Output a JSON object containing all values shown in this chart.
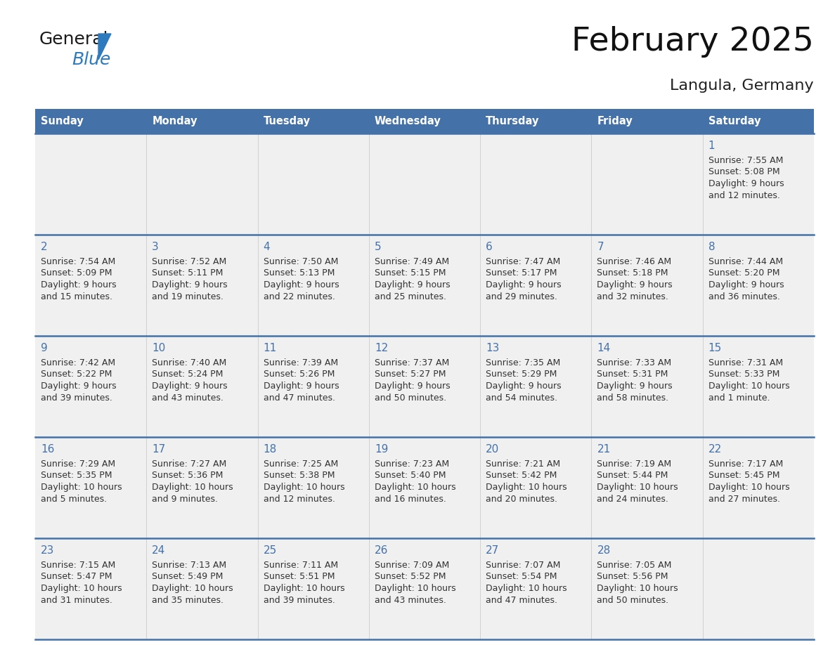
{
  "title": "February 2025",
  "subtitle": "Langula, Germany",
  "days_of_week": [
    "Sunday",
    "Monday",
    "Tuesday",
    "Wednesday",
    "Thursday",
    "Friday",
    "Saturday"
  ],
  "header_bg": "#4472a8",
  "header_text_color": "#ffffff",
  "cell_bg": "#f0f0f0",
  "day_number_color": "#4472a8",
  "text_color": "#333333",
  "line_color": "#4472a8",
  "calendar": [
    [
      null,
      null,
      null,
      null,
      null,
      null,
      {
        "day": "1",
        "sunrise": "7:55 AM",
        "sunset": "5:08 PM",
        "daylight_l1": "Daylight: 9 hours",
        "daylight_l2": "and 12 minutes."
      }
    ],
    [
      {
        "day": "2",
        "sunrise": "7:54 AM",
        "sunset": "5:09 PM",
        "daylight_l1": "Daylight: 9 hours",
        "daylight_l2": "and 15 minutes."
      },
      {
        "day": "3",
        "sunrise": "7:52 AM",
        "sunset": "5:11 PM",
        "daylight_l1": "Daylight: 9 hours",
        "daylight_l2": "and 19 minutes."
      },
      {
        "day": "4",
        "sunrise": "7:50 AM",
        "sunset": "5:13 PM",
        "daylight_l1": "Daylight: 9 hours",
        "daylight_l2": "and 22 minutes."
      },
      {
        "day": "5",
        "sunrise": "7:49 AM",
        "sunset": "5:15 PM",
        "daylight_l1": "Daylight: 9 hours",
        "daylight_l2": "and 25 minutes."
      },
      {
        "day": "6",
        "sunrise": "7:47 AM",
        "sunset": "5:17 PM",
        "daylight_l1": "Daylight: 9 hours",
        "daylight_l2": "and 29 minutes."
      },
      {
        "day": "7",
        "sunrise": "7:46 AM",
        "sunset": "5:18 PM",
        "daylight_l1": "Daylight: 9 hours",
        "daylight_l2": "and 32 minutes."
      },
      {
        "day": "8",
        "sunrise": "7:44 AM",
        "sunset": "5:20 PM",
        "daylight_l1": "Daylight: 9 hours",
        "daylight_l2": "and 36 minutes."
      }
    ],
    [
      {
        "day": "9",
        "sunrise": "7:42 AM",
        "sunset": "5:22 PM",
        "daylight_l1": "Daylight: 9 hours",
        "daylight_l2": "and 39 minutes."
      },
      {
        "day": "10",
        "sunrise": "7:40 AM",
        "sunset": "5:24 PM",
        "daylight_l1": "Daylight: 9 hours",
        "daylight_l2": "and 43 minutes."
      },
      {
        "day": "11",
        "sunrise": "7:39 AM",
        "sunset": "5:26 PM",
        "daylight_l1": "Daylight: 9 hours",
        "daylight_l2": "and 47 minutes."
      },
      {
        "day": "12",
        "sunrise": "7:37 AM",
        "sunset": "5:27 PM",
        "daylight_l1": "Daylight: 9 hours",
        "daylight_l2": "and 50 minutes."
      },
      {
        "day": "13",
        "sunrise": "7:35 AM",
        "sunset": "5:29 PM",
        "daylight_l1": "Daylight: 9 hours",
        "daylight_l2": "and 54 minutes."
      },
      {
        "day": "14",
        "sunrise": "7:33 AM",
        "sunset": "5:31 PM",
        "daylight_l1": "Daylight: 9 hours",
        "daylight_l2": "and 58 minutes."
      },
      {
        "day": "15",
        "sunrise": "7:31 AM",
        "sunset": "5:33 PM",
        "daylight_l1": "Daylight: 10 hours",
        "daylight_l2": "and 1 minute."
      }
    ],
    [
      {
        "day": "16",
        "sunrise": "7:29 AM",
        "sunset": "5:35 PM",
        "daylight_l1": "Daylight: 10 hours",
        "daylight_l2": "and 5 minutes."
      },
      {
        "day": "17",
        "sunrise": "7:27 AM",
        "sunset": "5:36 PM",
        "daylight_l1": "Daylight: 10 hours",
        "daylight_l2": "and 9 minutes."
      },
      {
        "day": "18",
        "sunrise": "7:25 AM",
        "sunset": "5:38 PM",
        "daylight_l1": "Daylight: 10 hours",
        "daylight_l2": "and 12 minutes."
      },
      {
        "day": "19",
        "sunrise": "7:23 AM",
        "sunset": "5:40 PM",
        "daylight_l1": "Daylight: 10 hours",
        "daylight_l2": "and 16 minutes."
      },
      {
        "day": "20",
        "sunrise": "7:21 AM",
        "sunset": "5:42 PM",
        "daylight_l1": "Daylight: 10 hours",
        "daylight_l2": "and 20 minutes."
      },
      {
        "day": "21",
        "sunrise": "7:19 AM",
        "sunset": "5:44 PM",
        "daylight_l1": "Daylight: 10 hours",
        "daylight_l2": "and 24 minutes."
      },
      {
        "day": "22",
        "sunrise": "7:17 AM",
        "sunset": "5:45 PM",
        "daylight_l1": "Daylight: 10 hours",
        "daylight_l2": "and 27 minutes."
      }
    ],
    [
      {
        "day": "23",
        "sunrise": "7:15 AM",
        "sunset": "5:47 PM",
        "daylight_l1": "Daylight: 10 hours",
        "daylight_l2": "and 31 minutes."
      },
      {
        "day": "24",
        "sunrise": "7:13 AM",
        "sunset": "5:49 PM",
        "daylight_l1": "Daylight: 10 hours",
        "daylight_l2": "and 35 minutes."
      },
      {
        "day": "25",
        "sunrise": "7:11 AM",
        "sunset": "5:51 PM",
        "daylight_l1": "Daylight: 10 hours",
        "daylight_l2": "and 39 minutes."
      },
      {
        "day": "26",
        "sunrise": "7:09 AM",
        "sunset": "5:52 PM",
        "daylight_l1": "Daylight: 10 hours",
        "daylight_l2": "and 43 minutes."
      },
      {
        "day": "27",
        "sunrise": "7:07 AM",
        "sunset": "5:54 PM",
        "daylight_l1": "Daylight: 10 hours",
        "daylight_l2": "and 47 minutes."
      },
      {
        "day": "28",
        "sunrise": "7:05 AM",
        "sunset": "5:56 PM",
        "daylight_l1": "Daylight: 10 hours",
        "daylight_l2": "and 50 minutes."
      },
      null
    ]
  ]
}
